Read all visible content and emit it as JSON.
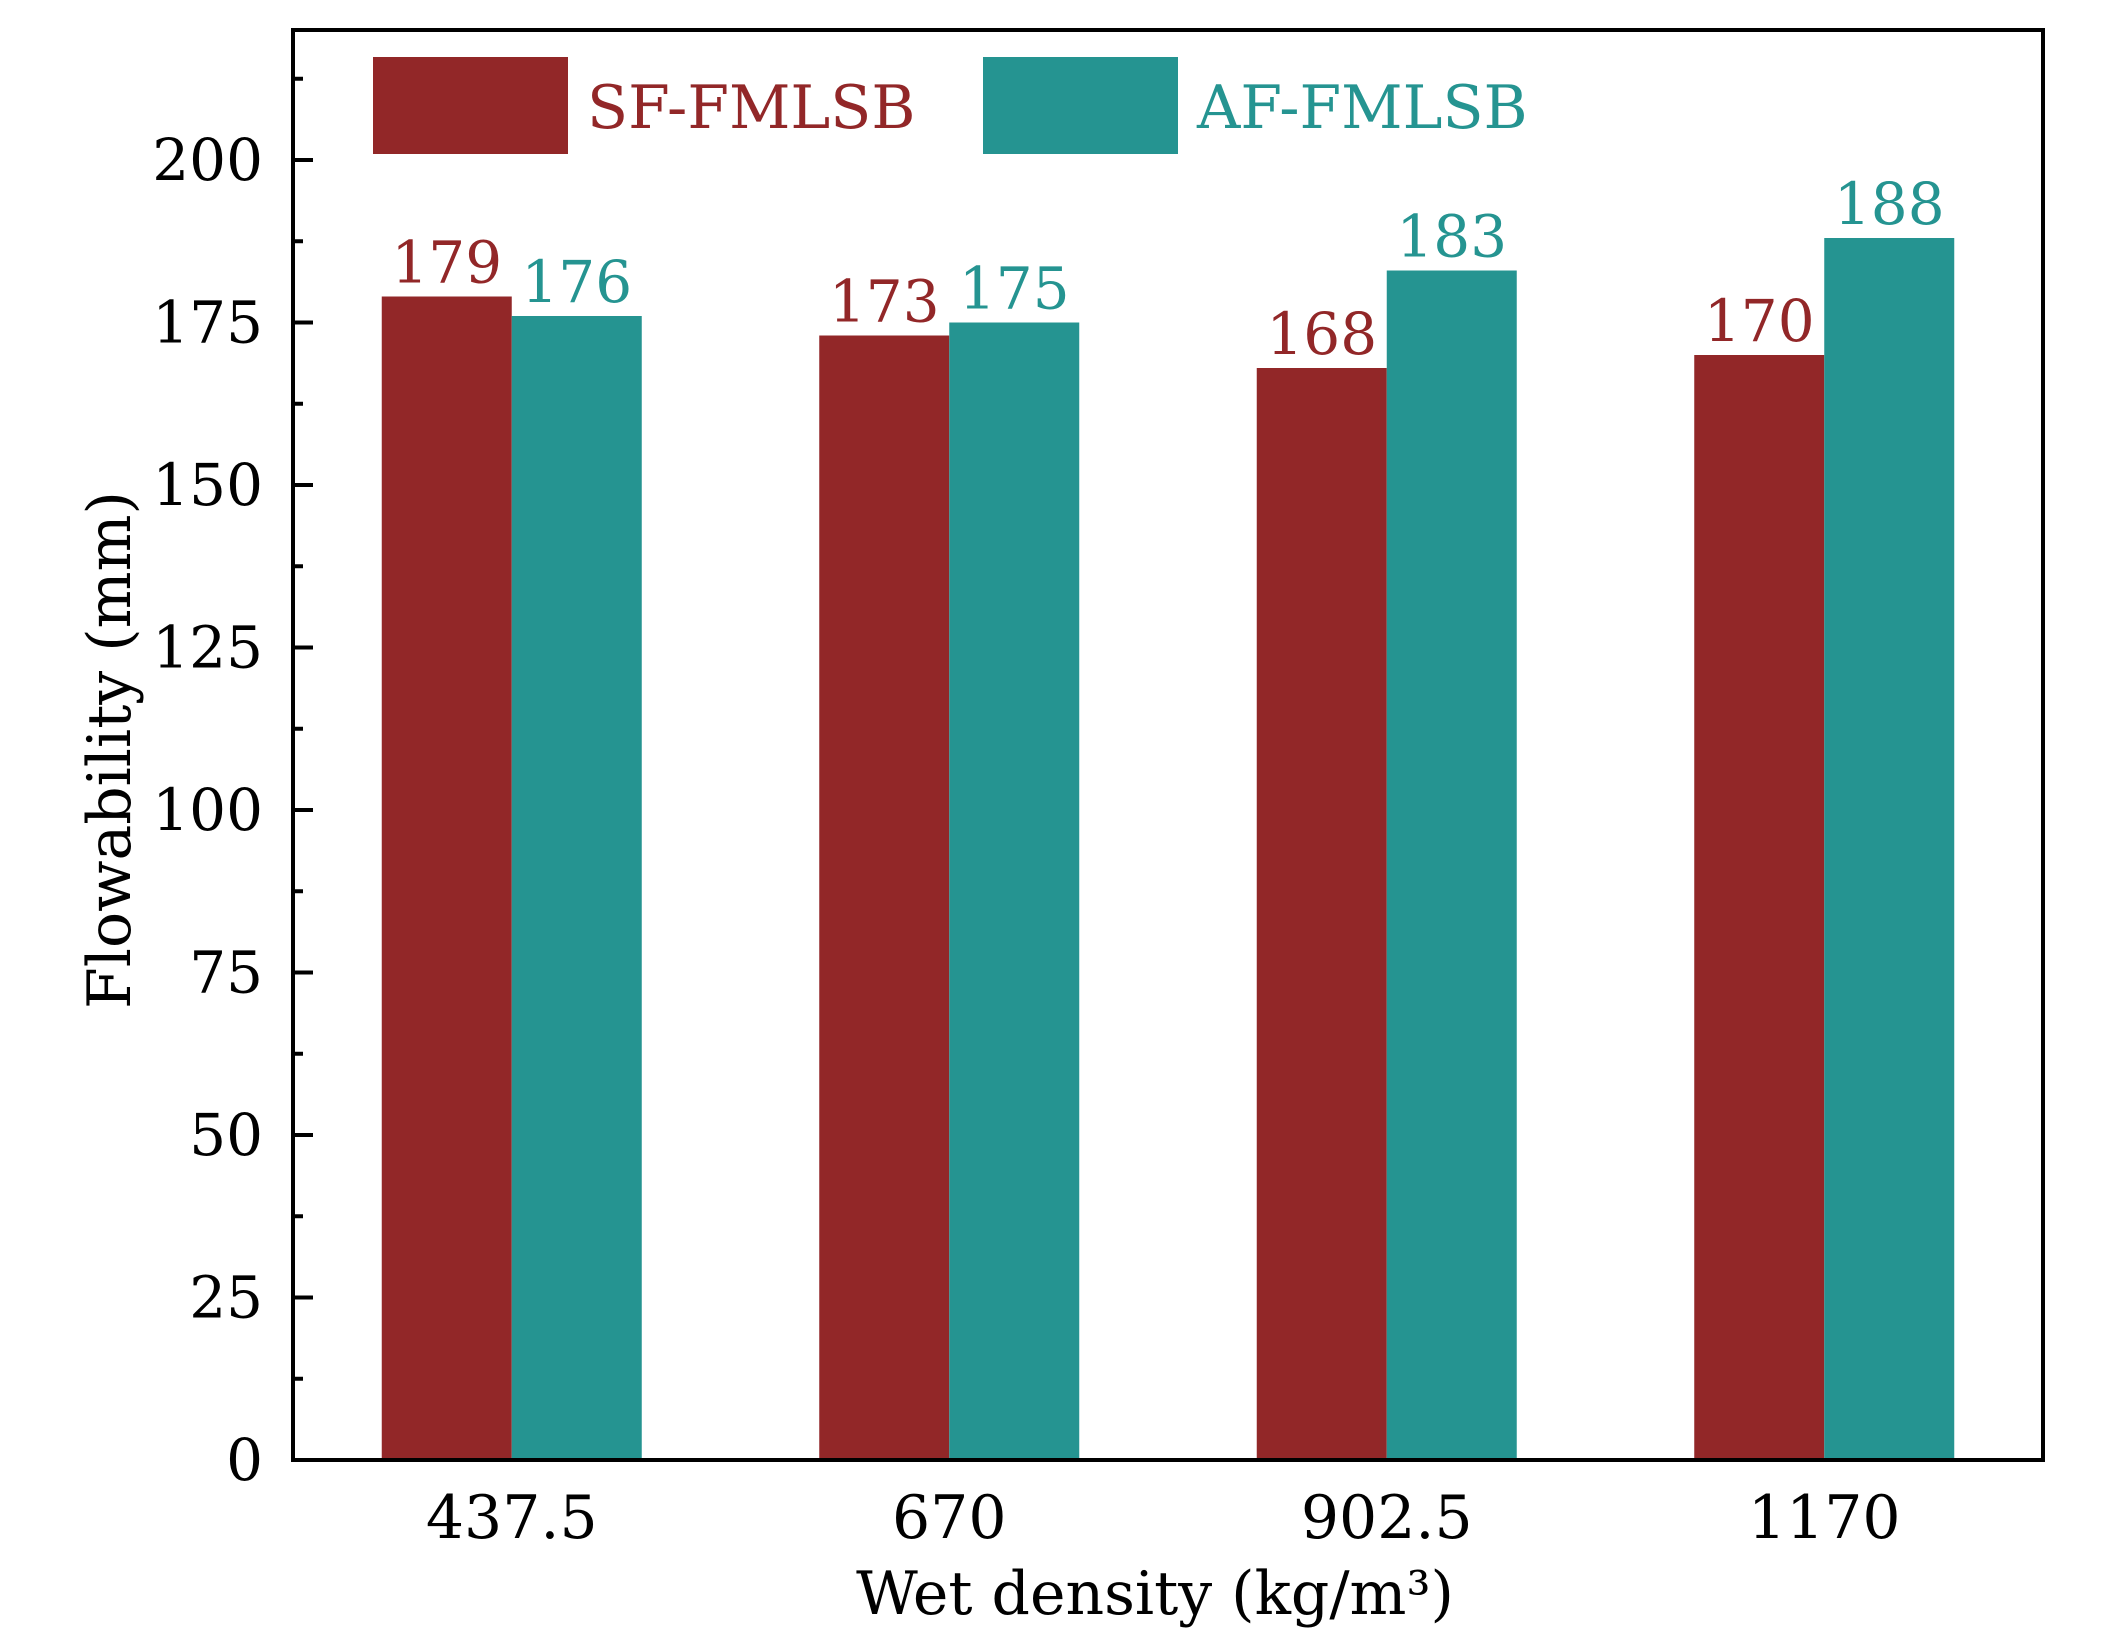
{
  "chart_data": {
    "type": "bar",
    "title": "",
    "xlabel": "Wet density (kg/m³)",
    "ylabel": "Flowability (mm)",
    "categories": [
      "437.5",
      "670",
      "902.5",
      "1170"
    ],
    "series": [
      {
        "name": "SF-FMLSB",
        "color": "#922728",
        "values": [
          179,
          173,
          168,
          170
        ]
      },
      {
        "name": "AF-FMLSB",
        "color": "#259491",
        "values": [
          176,
          175,
          183,
          188
        ]
      }
    ],
    "ylim": [
      0,
      220
    ],
    "yticks": [
      0,
      25,
      50,
      75,
      100,
      125,
      150,
      175,
      200
    ],
    "minor_step": 12.5,
    "grid": false,
    "legend_position": "top-left",
    "data_labels": true
  }
}
